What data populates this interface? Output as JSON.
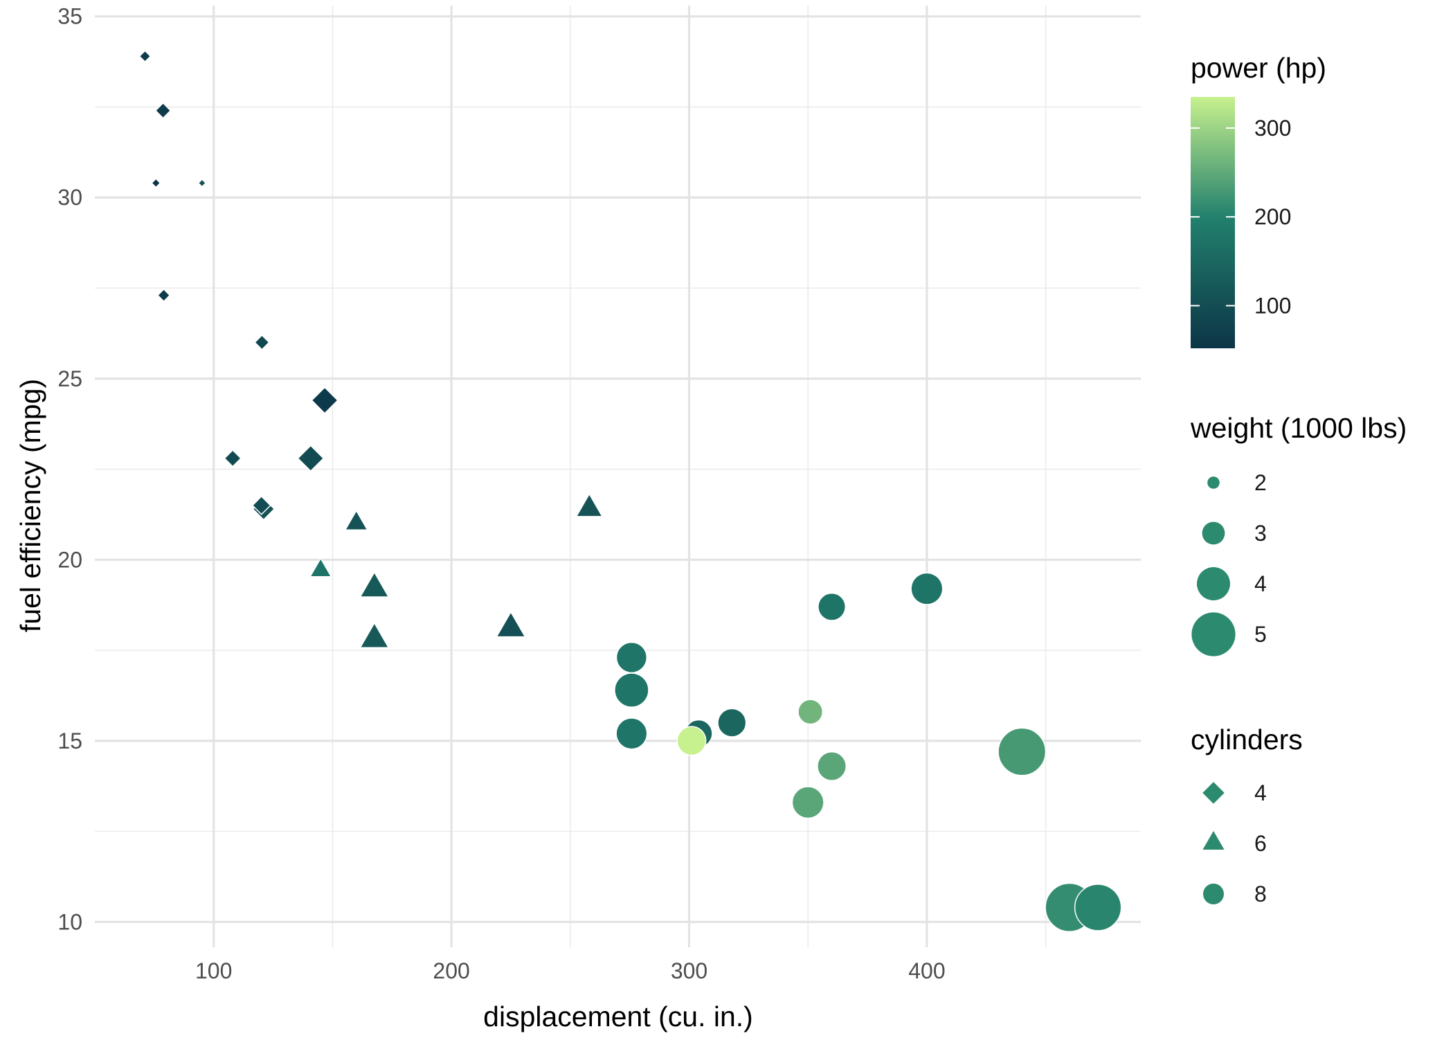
{
  "chart_data": {
    "type": "scatter",
    "title": "",
    "xlabel": "displacement (cu. in.)",
    "ylabel": "fuel efficiency (mpg)",
    "xlim": [
      50,
      490
    ],
    "ylim": [
      9.3,
      35.3
    ],
    "x_ticks": [
      100,
      200,
      300,
      400
    ],
    "y_ticks": [
      10,
      15,
      20,
      25,
      30,
      35
    ],
    "grid": true,
    "color_scale": {
      "low": "#0c3547",
      "mid": "#22806d",
      "high": "#c7f08e",
      "min": 52,
      "max": 335
    },
    "shape_by_cylinders": {
      "4": "diamond",
      "6": "triangle",
      "8": "circle"
    },
    "points": [
      {
        "x": 71.1,
        "y": 33.9,
        "hp": 65,
        "wt": 1.835,
        "cyl": 4
      },
      {
        "x": 78.7,
        "y": 32.4,
        "hp": 66,
        "wt": 2.2,
        "cyl": 4
      },
      {
        "x": 75.7,
        "y": 30.4,
        "hp": 52,
        "wt": 1.615,
        "cyl": 4
      },
      {
        "x": 95.1,
        "y": 30.4,
        "hp": 113,
        "wt": 1.513,
        "cyl": 4
      },
      {
        "x": 79.0,
        "y": 27.3,
        "hp": 66,
        "wt": 1.935,
        "cyl": 4
      },
      {
        "x": 120.3,
        "y": 26.0,
        "hp": 91,
        "wt": 2.14,
        "cyl": 4
      },
      {
        "x": 146.7,
        "y": 24.4,
        "hp": 62,
        "wt": 3.19,
        "cyl": 4
      },
      {
        "x": 108.0,
        "y": 22.8,
        "hp": 93,
        "wt": 2.32,
        "cyl": 4
      },
      {
        "x": 140.8,
        "y": 22.8,
        "hp": 95,
        "wt": 3.15,
        "cyl": 4
      },
      {
        "x": 121.0,
        "y": 21.4,
        "hp": 109,
        "wt": 2.78,
        "cyl": 4
      },
      {
        "x": 120.1,
        "y": 21.5,
        "hp": 97,
        "wt": 2.465,
        "cyl": 4
      },
      {
        "x": 160.0,
        "y": 21.0,
        "hp": 110,
        "wt": 2.62,
        "cyl": 6
      },
      {
        "x": 160.0,
        "y": 21.0,
        "hp": 110,
        "wt": 2.875,
        "cyl": 6
      },
      {
        "x": 258.0,
        "y": 21.4,
        "hp": 110,
        "wt": 3.215,
        "cyl": 6
      },
      {
        "x": 145.0,
        "y": 19.7,
        "hp": 175,
        "wt": 2.77,
        "cyl": 6
      },
      {
        "x": 167.6,
        "y": 19.2,
        "hp": 123,
        "wt": 3.44,
        "cyl": 6
      },
      {
        "x": 225.0,
        "y": 18.1,
        "hp": 105,
        "wt": 3.46,
        "cyl": 6
      },
      {
        "x": 167.6,
        "y": 17.8,
        "hp": 123,
        "wt": 3.44,
        "cyl": 6
      },
      {
        "x": 400.0,
        "y": 19.2,
        "hp": 175,
        "wt": 3.845,
        "cyl": 8
      },
      {
        "x": 360.0,
        "y": 18.7,
        "hp": 175,
        "wt": 3.44,
        "cyl": 8
      },
      {
        "x": 275.8,
        "y": 17.3,
        "hp": 180,
        "wt": 3.73,
        "cyl": 8
      },
      {
        "x": 275.8,
        "y": 16.4,
        "hp": 180,
        "wt": 4.07,
        "cyl": 8
      },
      {
        "x": 275.8,
        "y": 15.2,
        "hp": 180,
        "wt": 3.78,
        "cyl": 8
      },
      {
        "x": 351.0,
        "y": 15.8,
        "hp": 264,
        "wt": 3.17,
        "cyl": 8
      },
      {
        "x": 318.0,
        "y": 15.5,
        "hp": 150,
        "wt": 3.52,
        "cyl": 8
      },
      {
        "x": 304.0,
        "y": 15.2,
        "hp": 150,
        "wt": 3.435,
        "cyl": 8
      },
      {
        "x": 301.0,
        "y": 15.0,
        "hp": 335,
        "wt": 3.57,
        "cyl": 8
      },
      {
        "x": 440.0,
        "y": 14.7,
        "hp": 230,
        "wt": 5.345,
        "cyl": 8
      },
      {
        "x": 360.0,
        "y": 14.3,
        "hp": 245,
        "wt": 3.57,
        "cyl": 8
      },
      {
        "x": 350.0,
        "y": 13.3,
        "hp": 245,
        "wt": 3.84,
        "cyl": 8
      },
      {
        "x": 460.0,
        "y": 10.4,
        "hp": 215,
        "wt": 5.424,
        "cyl": 8
      },
      {
        "x": 472.0,
        "y": 10.4,
        "hp": 205,
        "wt": 5.25,
        "cyl": 8
      }
    ],
    "legend": {
      "power": {
        "title": "power (hp)",
        "ticks": [
          100,
          200,
          300
        ]
      },
      "weight": {
        "title": "weight (1000 lbs)",
        "values": [
          2,
          3,
          4,
          5
        ],
        "labels": [
          "2",
          "3",
          "4",
          "5"
        ]
      },
      "cylinders": {
        "title": "cylinders",
        "items": [
          {
            "label": "4",
            "shape": "diamond"
          },
          {
            "label": "6",
            "shape": "triangle"
          },
          {
            "label": "8",
            "shape": "circle"
          }
        ]
      },
      "key_color": "#2c8a6e"
    }
  }
}
